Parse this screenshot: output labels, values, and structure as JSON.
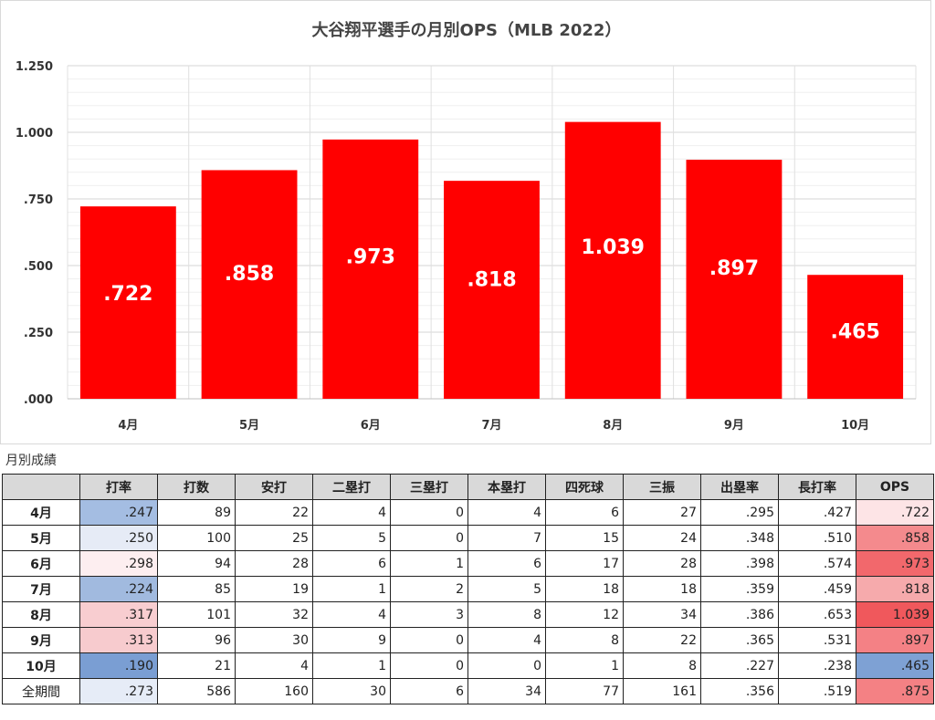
{
  "chart_data": {
    "type": "bar",
    "title": "大谷翔平選手の月別OPS（MLB 2022）",
    "categories": [
      "4月",
      "5月",
      "6月",
      "7月",
      "8月",
      "9月",
      "10月"
    ],
    "values": [
      0.722,
      0.858,
      0.973,
      0.818,
      1.039,
      0.897,
      0.465
    ],
    "value_labels": [
      ".722",
      ".858",
      ".973",
      ".818",
      "1.039",
      ".897",
      ".465"
    ],
    "ylim": [
      0,
      1.25
    ],
    "yticks": [
      0,
      0.25,
      0.5,
      0.75,
      1.0,
      1.25
    ],
    "ytick_labels": [
      ".000",
      ".250",
      ".500",
      ".750",
      "1.000",
      "1.250"
    ],
    "grid": true,
    "bar_color": "#ff0000",
    "xlabel": "",
    "ylabel": ""
  },
  "table": {
    "caption": "月別成績",
    "headers": [
      "",
      "打率",
      "打数",
      "安打",
      "二塁打",
      "三塁打",
      "本塁打",
      "四死球",
      "三振",
      "出塁率",
      "長打率",
      "OPS"
    ],
    "rows": [
      {
        "label": "4月",
        "cells": [
          ".247",
          "89",
          "22",
          "4",
          "0",
          "4",
          "6",
          "27",
          ".295",
          ".427",
          ".722"
        ],
        "avg_color": "#a4bde2",
        "ops_color": "#fde4e6"
      },
      {
        "label": "5月",
        "cells": [
          ".250",
          "100",
          "25",
          "5",
          "0",
          "7",
          "15",
          "24",
          ".348",
          ".510",
          ".858"
        ],
        "avg_color": "#e6ebf6",
        "ops_color": "#f48a8d"
      },
      {
        "label": "6月",
        "cells": [
          ".298",
          "94",
          "28",
          "6",
          "1",
          "6",
          "17",
          "28",
          ".398",
          ".574",
          ".973"
        ],
        "avg_color": "#fdeef0",
        "ops_color": "#f2686c"
      },
      {
        "label": "7月",
        "cells": [
          ".224",
          "85",
          "19",
          "1",
          "2",
          "5",
          "18",
          "18",
          ".359",
          ".459",
          ".818"
        ],
        "avg_color": "#a1badf",
        "ops_color": "#f6aaac"
      },
      {
        "label": "8月",
        "cells": [
          ".317",
          "101",
          "32",
          "4",
          "3",
          "8",
          "12",
          "34",
          ".386",
          ".653",
          "1.039"
        ],
        "avg_color": "#f8cdd0",
        "ops_color": "#f0585c"
      },
      {
        "label": "9月",
        "cells": [
          ".313",
          "96",
          "30",
          "9",
          "0",
          "4",
          "8",
          "22",
          ".365",
          ".531",
          ".897"
        ],
        "avg_color": "#f7cbce",
        "ops_color": "#f48185"
      },
      {
        "label": "10月",
        "cells": [
          ".190",
          "21",
          "4",
          "1",
          "0",
          "0",
          "1",
          "8",
          ".227",
          ".238",
          ".465"
        ],
        "avg_color": "#7a9ed3",
        "ops_color": "#7ea1d4"
      },
      {
        "label": "全期間",
        "cells": [
          ".273",
          "586",
          "160",
          "30",
          "6",
          "34",
          "77",
          "161",
          ".356",
          ".519",
          ".875"
        ],
        "avg_color": "#e6ecf7",
        "ops_color": "#f48184"
      }
    ]
  }
}
